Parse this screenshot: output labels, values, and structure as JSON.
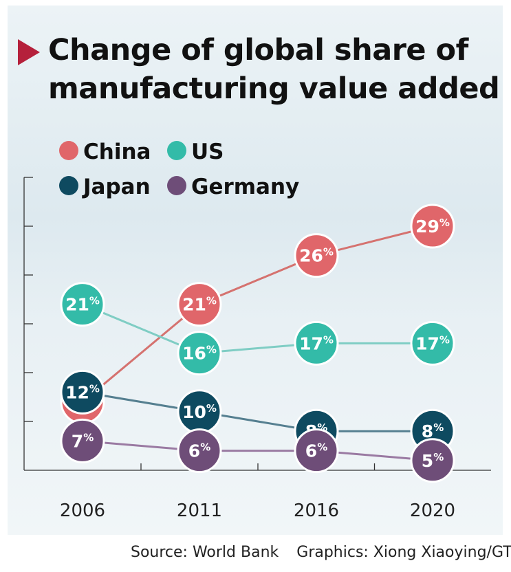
{
  "title": [
    "Change of global share of",
    "manufacturing value added"
  ],
  "source": "Source: World Bank",
  "credit": "Graphics: Xiong Xiaoying/GT",
  "chart_data": {
    "type": "line",
    "x": [
      "2006",
      "2011",
      "2016",
      "2020"
    ],
    "series": [
      {
        "name": "China",
        "color": "#e0666a",
        "line_color": "#d5726f",
        "label_color": "#ffffff",
        "values": [
          11,
          21,
          26,
          29
        ]
      },
      {
        "name": "US",
        "color": "#33bba8",
        "line_color": "#7fcdc4",
        "label_color": "#ffffff",
        "values": [
          21,
          16,
          17,
          17
        ]
      },
      {
        "name": "Japan",
        "color": "#0e4a60",
        "line_color": "#557f90",
        "label_color": "#ffffff",
        "values": [
          12,
          10,
          8,
          8
        ]
      },
      {
        "name": "Germany",
        "color": "#6e4d78",
        "line_color": "#9a7aa2",
        "label_color": "#ffffff",
        "values": [
          7,
          6,
          6,
          5
        ]
      }
    ],
    "value_suffix": "%",
    "ylim": [
      4,
      34
    ],
    "y_ticks": [
      9,
      14,
      19,
      24,
      29,
      34
    ],
    "xlabel": "",
    "ylabel": "",
    "grid": false,
    "legend_position": "top-left"
  }
}
